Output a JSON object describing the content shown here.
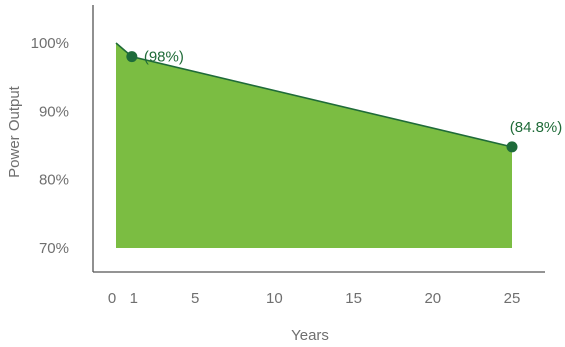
{
  "chart_data": {
    "type": "area",
    "title": "",
    "xlabel": "Years",
    "ylabel": "Power Output",
    "x_ticks": [
      "0",
      "1",
      "5",
      "10",
      "15",
      "20",
      "25"
    ],
    "x_tick_values": [
      0,
      1,
      5,
      10,
      15,
      20,
      25
    ],
    "y_ticks": [
      "70%",
      "80%",
      "90%",
      "100%"
    ],
    "y_tick_values": [
      70,
      80,
      90,
      100
    ],
    "xlim": [
      0,
      25
    ],
    "ylim": [
      70,
      100
    ],
    "grid": false,
    "legend": "none",
    "series": [
      {
        "x": [
          0,
          1,
          25
        ],
        "y": [
          100,
          98,
          84.8
        ]
      }
    ],
    "annotations": [
      {
        "x": 1,
        "y": 98,
        "label": "(98%)"
      },
      {
        "x": 25,
        "y": 84.8,
        "label": "(84.8%)"
      }
    ],
    "colors": {
      "fill": "#7bbd42",
      "line": "#1f6b38",
      "marker": "#1e6b3a",
      "axis": "#555555",
      "text": "#6f6f6f"
    }
  }
}
